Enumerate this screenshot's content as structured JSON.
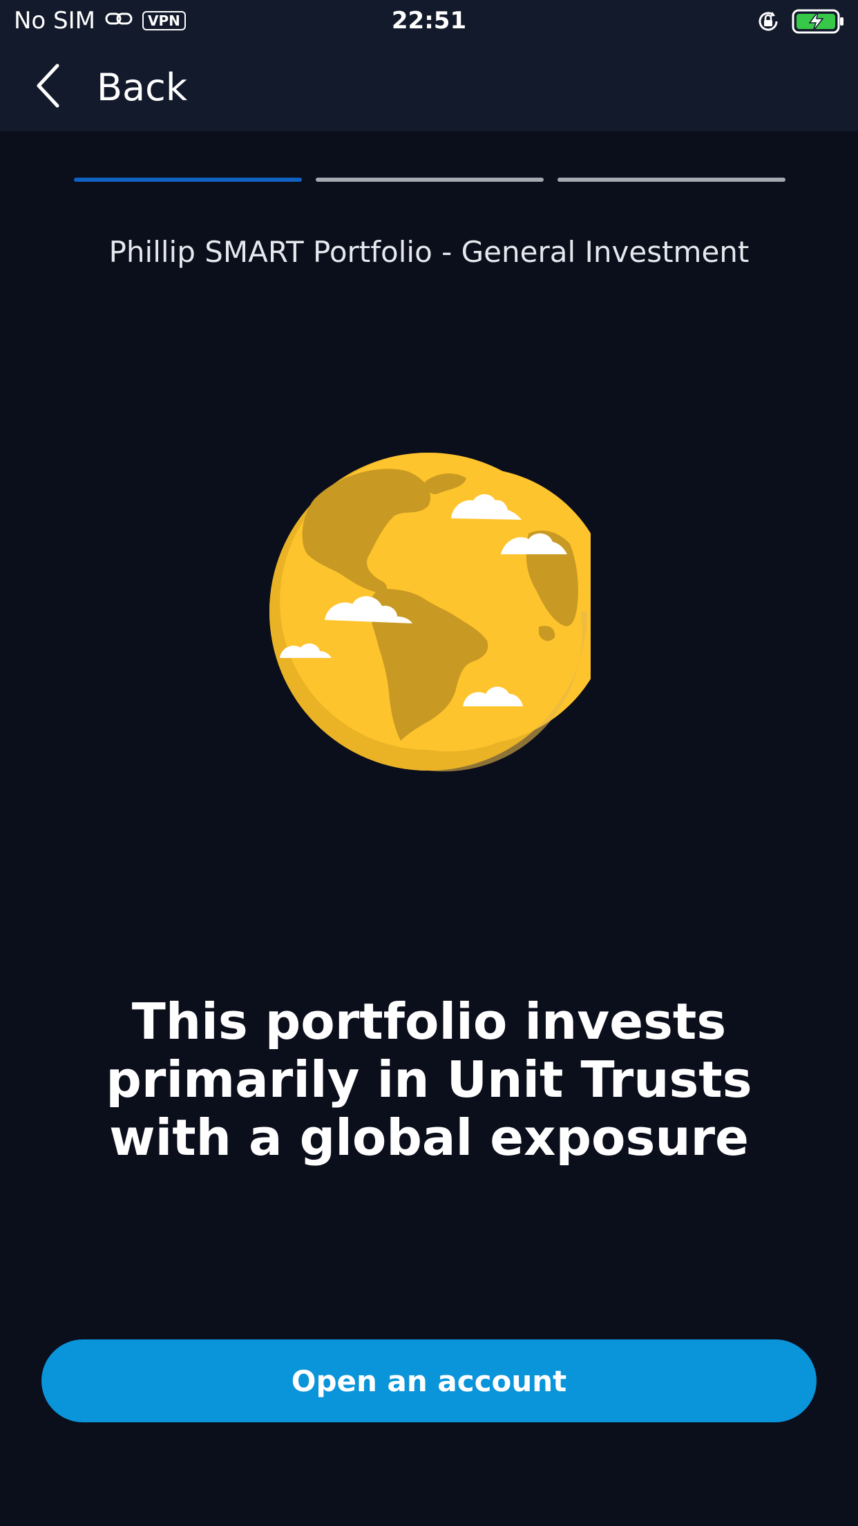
{
  "status_bar": {
    "carrier": "No SIM",
    "vpn": "VPN",
    "time": "22:51",
    "icons": [
      "link-icon",
      "rotation-lock-icon",
      "battery-charging-icon"
    ]
  },
  "nav": {
    "back_label": "Back",
    "back_icon": "chevron-left-icon"
  },
  "progress": {
    "total_steps": 3,
    "current_step": 1
  },
  "subtitle": "Phillip SMART Portfolio - General Investment",
  "illustration": "globe-icon",
  "headline": "This portfolio invests primarily in Unit Trusts with a global exposure",
  "cta": {
    "label": "Open an account"
  },
  "colors": {
    "background": "#0b0e1b",
    "bar": "#131a2b",
    "accent": "#0a94d9",
    "progress_active": "#1062c2",
    "progress_inactive": "#a5a8b0",
    "globe_main": "#fec42d",
    "globe_land": "#c99a23"
  }
}
